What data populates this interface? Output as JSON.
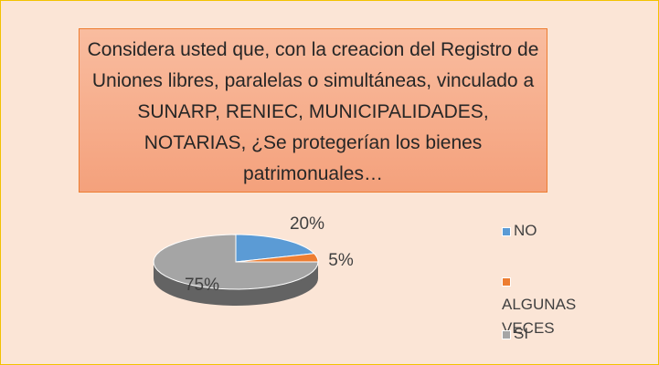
{
  "chart_data": {
    "type": "pie",
    "title": "Considera usted que, con la creacion del Registro de Uniones libres, paralelas o simultáneas, vinculado a SUNARP, RENIEC, MUNICIPALIDADES, NOTARIAS, ¿Se protegerían los bienes patrimonuales…",
    "categories": [
      "NO",
      "ALGUNAS VECES",
      "SI"
    ],
    "values": [
      20,
      5,
      75
    ],
    "value_labels": [
      "20%",
      "5%",
      "75%"
    ],
    "colors": [
      "#5b9bd5",
      "#ed7d31",
      "#a5a5a5"
    ],
    "legend": "right"
  }
}
